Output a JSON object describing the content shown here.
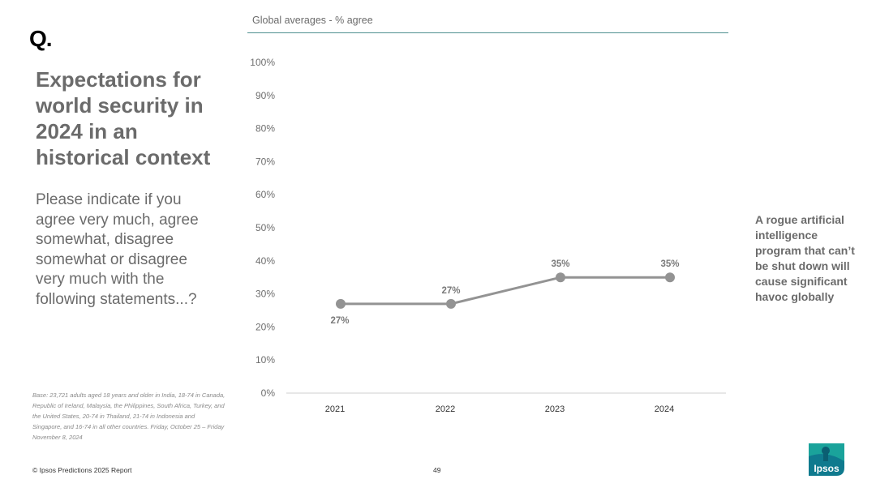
{
  "brand": {
    "q_mark": "Q.",
    "logo_text": "Ipsos"
  },
  "left_panel": {
    "title": "Expectations for world security in 2024 in an historical context",
    "question": "Please indicate if you agree very much, agree somewhat, disagree somewhat or disagree very much with the following statements...?",
    "base_note": "Base: 23,721 adults aged 18 years and older in India, 18-74 in Canada, Republic of Ireland, Malaysia, the Philippines, South Africa, Turkey, and the United States, 20-74 in Thailand, 21-74 in Indonesia and Singapore, and 16-74 in all other countries. Friday, October 25 – Friday November 8, 2024"
  },
  "footer": {
    "copyright": "© Ipsos Predictions 2025 Report",
    "page_number": "49"
  },
  "chart_data": {
    "type": "line",
    "title": "Global averages - % agree",
    "x": [
      "2021",
      "2022",
      "2023",
      "2024"
    ],
    "series": [
      {
        "name": "A rogue artificial intelligence program that can’t be shut down will cause significant havoc globally",
        "values": [
          27,
          27,
          35,
          35
        ],
        "labels": [
          "27%",
          "27%",
          "35%",
          "35%"
        ]
      }
    ],
    "ylim": [
      0,
      100
    ],
    "yticks": [
      "0%",
      "10%",
      "20%",
      "30%",
      "40%",
      "50%",
      "60%",
      "70%",
      "80%",
      "90%",
      "100%"
    ],
    "grid": false,
    "series_color": "#939393",
    "accent_color": "#4f8f8f"
  }
}
